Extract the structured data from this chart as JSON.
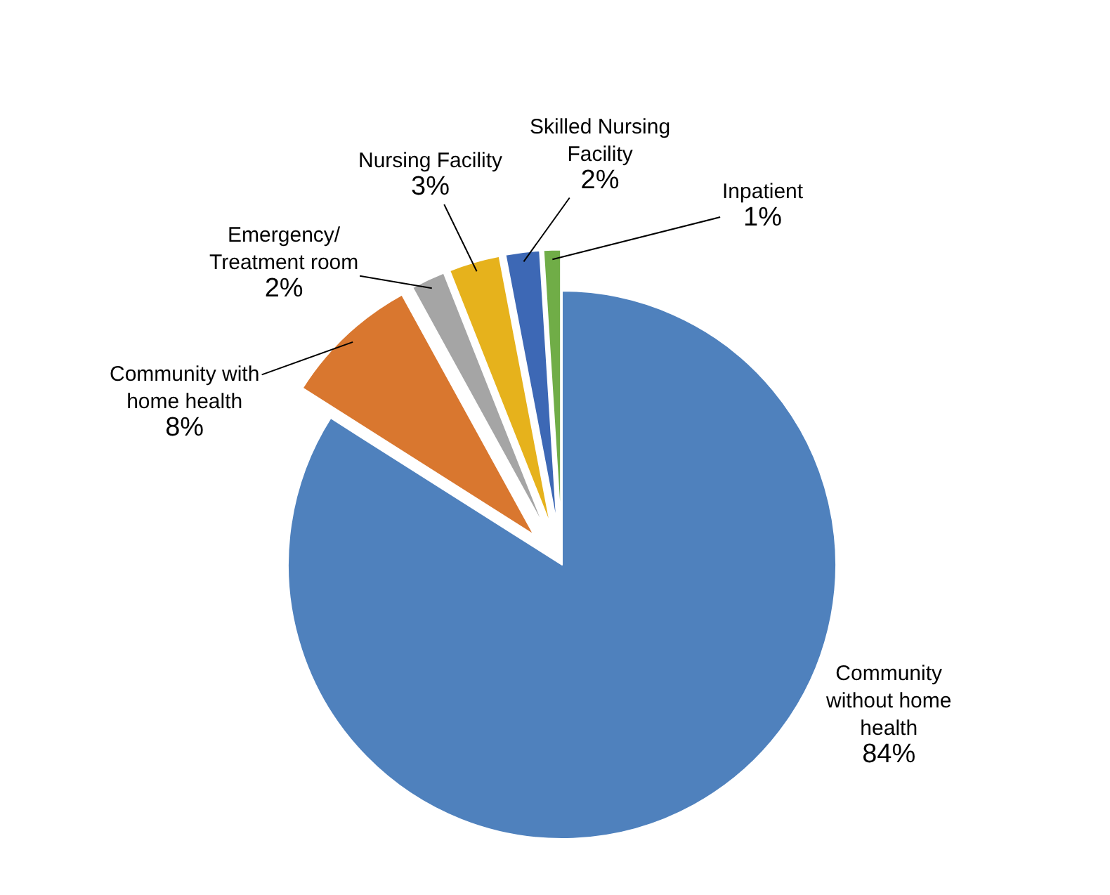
{
  "chart_data": {
    "type": "pie",
    "categories": [
      "Community without home health",
      "Community with home health",
      "Emergency/ Treatment room",
      "Nursing Facility",
      "Skilled Nursing Facility",
      "Inpatient"
    ],
    "values": [
      84,
      8,
      2,
      3,
      2,
      1
    ],
    "colors": [
      "#4f81bd",
      "#d9772f",
      "#a5a5a5",
      "#e6b21c",
      "#3d68b5",
      "#70ad47"
    ],
    "value_labels": [
      "84%",
      "8%",
      "2%",
      "3%",
      "2%",
      "1%"
    ],
    "legend": false
  }
}
